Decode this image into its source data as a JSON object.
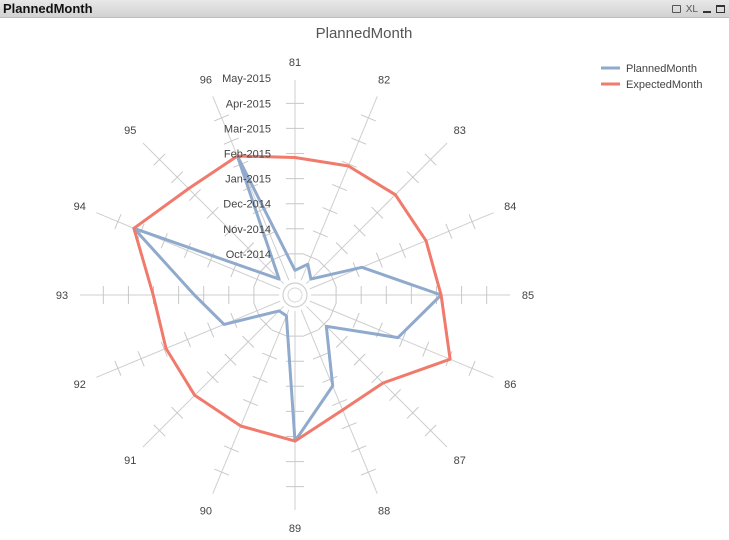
{
  "window": {
    "title": "PlannedMonth",
    "xl_label": "XL"
  },
  "chart_data": {
    "type": "radar",
    "title": "PlannedMonth",
    "categories": [
      "81",
      "82",
      "83",
      "84",
      "85",
      "86",
      "87",
      "88",
      "89",
      "90",
      "91",
      "92",
      "93",
      "94",
      "95",
      "96"
    ],
    "radial_ticks": [
      "Oct-2014",
      "Nov-2014",
      "Dec-2014",
      "Jan-2015",
      "Feb-2015",
      "Mar-2015",
      "Apr-2015",
      "May-2015"
    ],
    "radial_range": [
      0,
      10
    ],
    "legend_position": "top-right",
    "series": [
      {
        "name": "PlannedMonth",
        "color": "#8faacc",
        "values": [
          0.4,
          0.8,
          0.3,
          2.6,
          6.0,
          4.4,
          1.3,
          3.8,
          6.0,
          0.3,
          0.3,
          2.8,
          3.9,
          7.3,
          0.3,
          6.2
        ]
      },
      {
        "name": "ExpectedMonth",
        "color": "#f07a6b",
        "values": [
          5.6,
          5.7,
          5.8,
          5.8,
          6.0,
          7.0,
          5.0,
          5.0,
          6.0,
          5.8,
          5.8,
          5.7,
          5.8,
          7.3,
          6.2,
          6.2
        ]
      }
    ]
  }
}
